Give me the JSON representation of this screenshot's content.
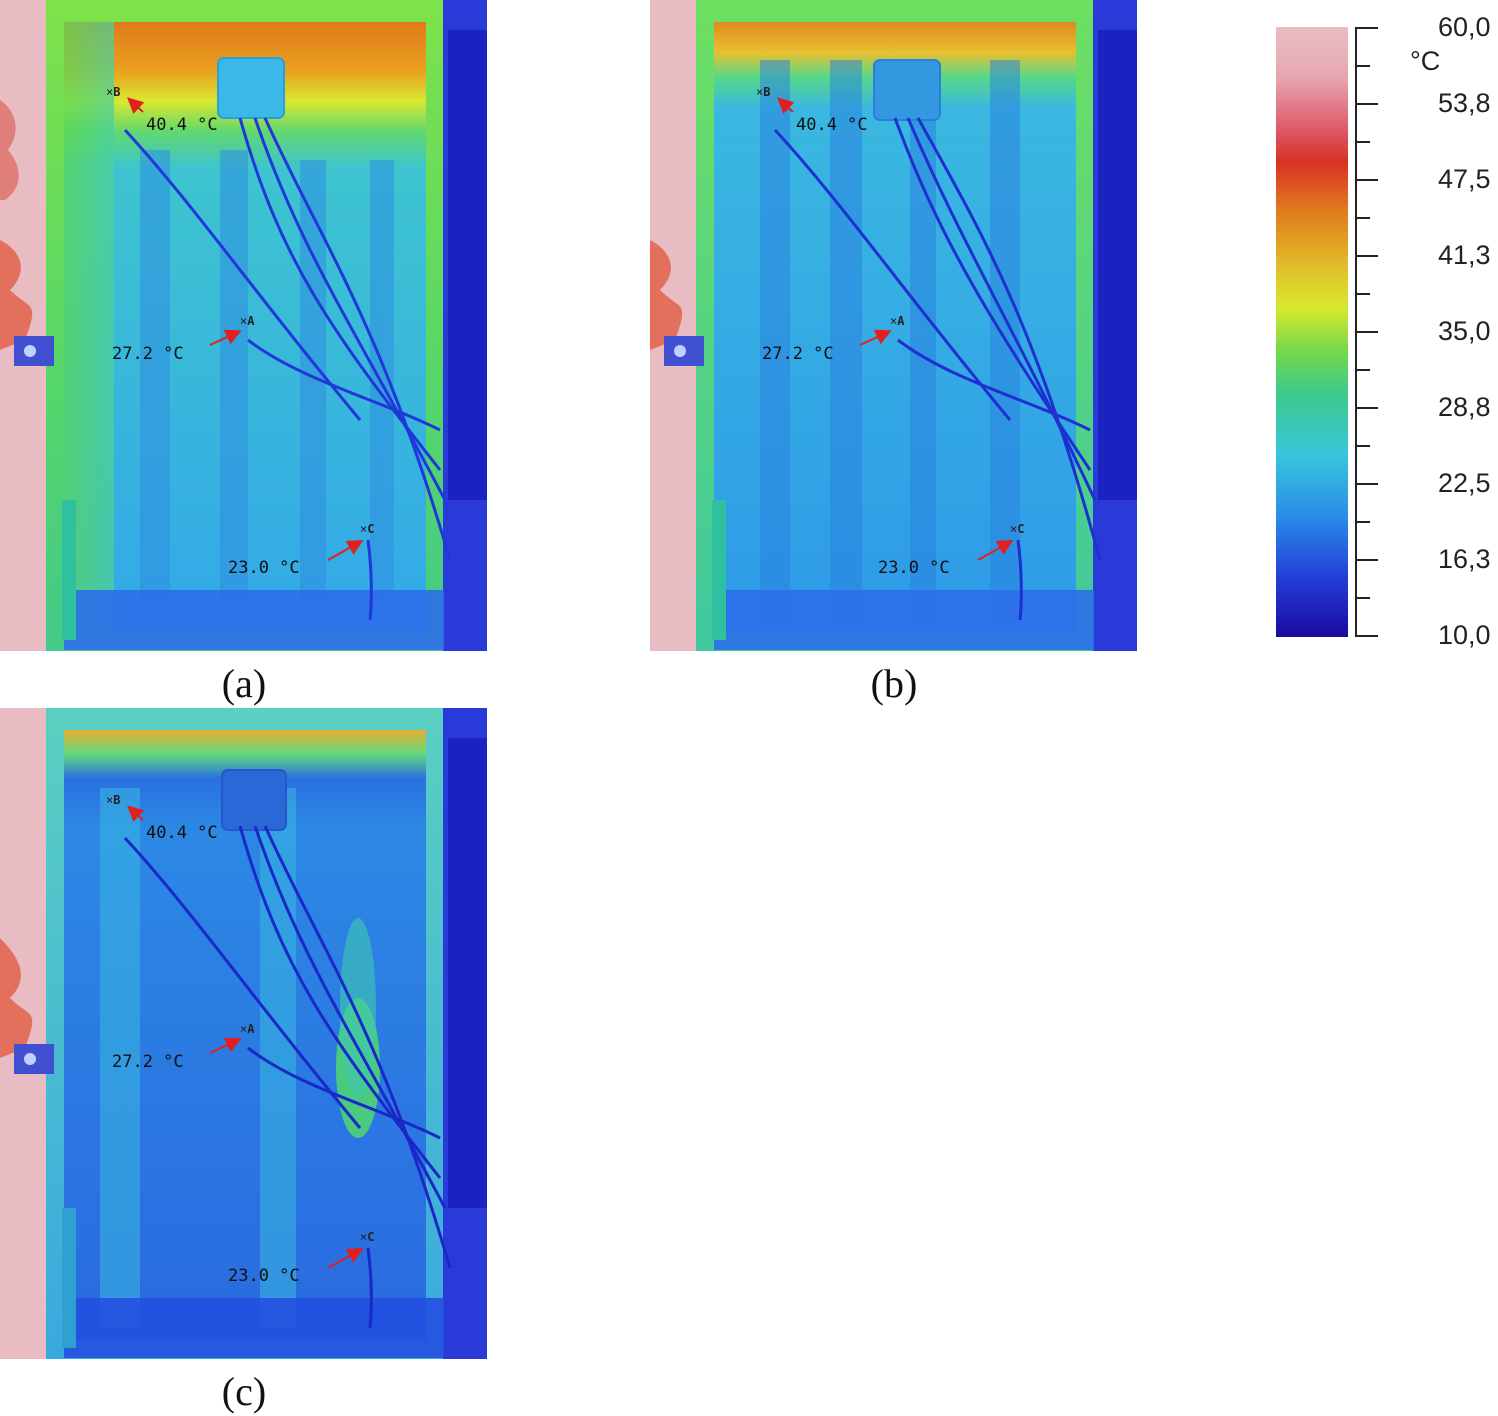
{
  "panels": [
    {
      "caption": "(a)",
      "points": [
        {
          "marker": "B",
          "value": "40.4 °C"
        },
        {
          "marker": "A",
          "value": "27.2 °C"
        },
        {
          "marker": "C",
          "value": "23.0 °C"
        }
      ]
    },
    {
      "caption": "(b)",
      "points": [
        {
          "marker": "B",
          "value": "40.4 °C"
        },
        {
          "marker": "A",
          "value": "27.2 °C"
        },
        {
          "marker": "C",
          "value": "23.0 °C"
        }
      ]
    },
    {
      "caption": "(c)",
      "points": [
        {
          "marker": "B",
          "value": "40.4 °C"
        },
        {
          "marker": "A",
          "value": "27.2 °C"
        },
        {
          "marker": "C",
          "value": "23.0 °C"
        }
      ]
    }
  ],
  "colorbar": {
    "unit": "°C",
    "ticks": [
      "60,0",
      "53,8",
      "47,5",
      "41,3",
      "35,0",
      "28,8",
      "22,5",
      "16,3",
      "10,0"
    ],
    "colors": {
      "min": "#1a0aa0",
      "max": "#e8b4bd"
    }
  }
}
